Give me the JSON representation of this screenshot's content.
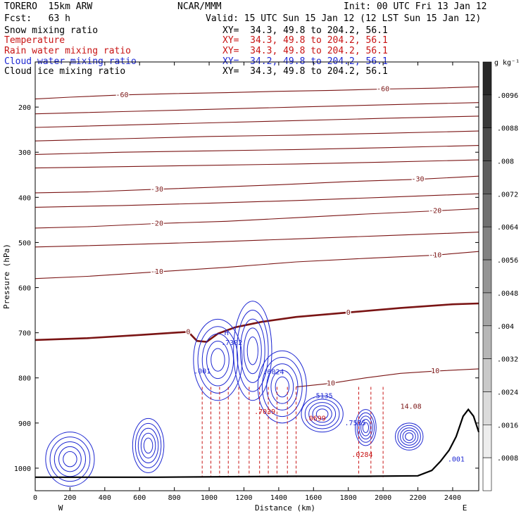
{
  "header": {
    "model": "TORERO  15km ARW",
    "center": "NCAR/MMM",
    "init": "Init: 00 UTC Fri 13 Jan 12",
    "fcst": "Fcst:   63 h",
    "valid": "Valid: 15 UTC Sun 15 Jan 12 (12 LST Sun 15 Jan 12)"
  },
  "fields": [
    {
      "name": "Snow mixing ratio",
      "xy": "",
      "color": "#000000"
    },
    {
      "name": "Temperature",
      "xy": "XY=  34.3, 49.8 to 204.2, 56.1",
      "color": "#c81414"
    },
    {
      "name": "Rain water mixing ratio",
      "xy": "XY=  34.3, 49.8 to 204.2, 56.1",
      "color": "#c81414"
    },
    {
      "name": "Cloud water mixing ratio",
      "xy": "XY=  34.2, 49.8 to 204.2, 56.1",
      "color": "#1e28d2"
    },
    {
      "name": "Cloud ice mixing ratio",
      "xy": "XY=  34.3, 49.8 to 204.2, 56.1",
      "color": "#000000"
    }
  ],
  "snow_xy": "XY=  34.3, 49.8 to 204.2, 56.1",
  "colorbar": {
    "unit": "g kg⁻¹",
    "ticks": [
      ".0096",
      ".0088",
      ".008",
      ".0072",
      ".0064",
      ".0056",
      ".0048",
      ".004",
      ".0032",
      ".0024",
      ".0016",
      ".0008"
    ]
  },
  "chart_data": {
    "type": "contour-cross-section",
    "xlabel": "Distance (km)",
    "ylabel": "Pressure (hPa)",
    "xlim": [
      0,
      2550
    ],
    "ylim": [
      1050,
      100
    ],
    "xticks": [
      0,
      200,
      400,
      600,
      800,
      1000,
      1200,
      1400,
      1600,
      1800,
      2000,
      2200,
      2400
    ],
    "yticks": [
      200,
      300,
      400,
      500,
      600,
      700,
      800,
      900,
      1000
    ],
    "x_end_labels": {
      "left": "W",
      "right": "E"
    },
    "temperature_contours": [
      {
        "label": "-60",
        "points": [
          [
            0,
            182
          ],
          [
            200,
            178
          ],
          [
            500,
            173
          ],
          [
            800,
            170
          ],
          [
            1100,
            168
          ],
          [
            1400,
            165
          ],
          [
            1700,
            163
          ],
          [
            2000,
            160
          ],
          [
            2300,
            158
          ],
          [
            2550,
            155
          ]
        ]
      },
      {
        "label": "",
        "points": [
          [
            0,
            215
          ],
          [
            500,
            210
          ],
          [
            1000,
            205
          ],
          [
            1500,
            200
          ],
          [
            2000,
            195
          ],
          [
            2550,
            190
          ]
        ]
      },
      {
        "label": "",
        "points": [
          [
            0,
            245
          ],
          [
            500,
            240
          ],
          [
            1000,
            235
          ],
          [
            1500,
            230
          ],
          [
            2000,
            225
          ],
          [
            2550,
            220
          ]
        ]
      },
      {
        "label": "",
        "points": [
          [
            0,
            275
          ],
          [
            500,
            270
          ],
          [
            1000,
            265
          ],
          [
            1500,
            262
          ],
          [
            2000,
            258
          ],
          [
            2550,
            253
          ]
        ]
      },
      {
        "label": "",
        "points": [
          [
            0,
            305
          ],
          [
            500,
            300
          ],
          [
            1000,
            297
          ],
          [
            1500,
            294
          ],
          [
            2000,
            290
          ],
          [
            2550,
            285
          ]
        ]
      },
      {
        "label": "",
        "points": [
          [
            0,
            335
          ],
          [
            500,
            332
          ],
          [
            1000,
            329
          ],
          [
            1500,
            326
          ],
          [
            2000,
            322
          ],
          [
            2550,
            317
          ]
        ]
      },
      {
        "label": "-30",
        "points": [
          [
            0,
            390
          ],
          [
            300,
            388
          ],
          [
            700,
            382
          ],
          [
            1000,
            378
          ],
          [
            1400,
            372
          ],
          [
            1800,
            365
          ],
          [
            2200,
            360
          ],
          [
            2550,
            353
          ]
        ]
      },
      {
        "label": "",
        "points": [
          [
            0,
            422
          ],
          [
            500,
            418
          ],
          [
            1000,
            413
          ],
          [
            1500,
            407
          ],
          [
            2000,
            400
          ],
          [
            2550,
            392
          ]
        ]
      },
      {
        "label": "-20",
        "points": [
          [
            0,
            468
          ],
          [
            300,
            465
          ],
          [
            700,
            458
          ],
          [
            1100,
            453
          ],
          [
            1500,
            445
          ],
          [
            1900,
            437
          ],
          [
            2300,
            430
          ],
          [
            2550,
            425
          ]
        ]
      },
      {
        "label": "",
        "points": [
          [
            0,
            510
          ],
          [
            500,
            505
          ],
          [
            1000,
            499
          ],
          [
            1500,
            492
          ],
          [
            2000,
            485
          ],
          [
            2550,
            477
          ]
        ]
      },
      {
        "label": "-10",
        "points": [
          [
            0,
            580
          ],
          [
            300,
            575
          ],
          [
            700,
            565
          ],
          [
            1100,
            555
          ],
          [
            1500,
            543
          ],
          [
            1900,
            535
          ],
          [
            2300,
            528
          ],
          [
            2550,
            520
          ]
        ]
      },
      {
        "label": "0",
        "points": [
          [
            0,
            716
          ],
          [
            300,
            712
          ],
          [
            600,
            705
          ],
          [
            880,
            698
          ],
          [
            930,
            718
          ],
          [
            985,
            720
          ],
          [
            1050,
            702
          ],
          [
            1150,
            688
          ],
          [
            1300,
            676
          ],
          [
            1500,
            665
          ],
          [
            1800,
            655
          ],
          [
            2100,
            645
          ],
          [
            2400,
            637
          ],
          [
            2550,
            635
          ]
        ]
      },
      {
        "label": "10",
        "points": [
          [
            1500,
            820
          ],
          [
            1700,
            812
          ],
          [
            1900,
            800
          ],
          [
            2100,
            790
          ],
          [
            2300,
            785
          ],
          [
            2550,
            780
          ]
        ]
      }
    ],
    "cloud_water_labels": [
      "H",
      ".7302",
      ".001",
      ".6024",
      ".5135",
      ".7535",
      "14.08",
      ".001"
    ],
    "rain_labels": [
      ".7039",
      ".0699",
      ".0284"
    ]
  }
}
